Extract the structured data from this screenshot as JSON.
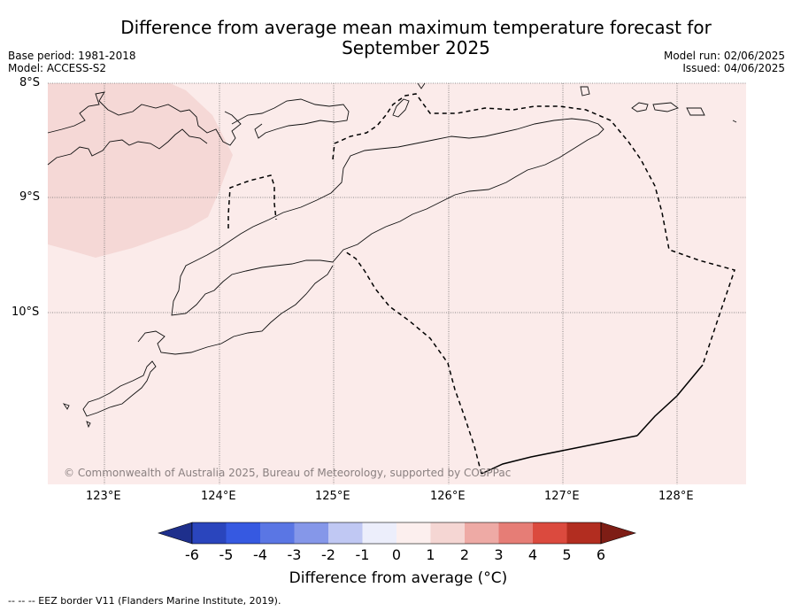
{
  "header": {
    "title_line1": "Difference from average mean maximum temperature forecast for",
    "title_line2": "September 2025",
    "base_period": "Base period: 1981-2018",
    "model": "Model: ACCESS-S2",
    "model_run": "Model run: 02/06/2025",
    "issued": "Issued: 04/06/2025"
  },
  "map": {
    "lat_labels": [
      "8°S",
      "9°S",
      "10°S"
    ],
    "lon_labels": [
      "123°E",
      "124°E",
      "125°E",
      "126°E",
      "127°E",
      "128°E"
    ],
    "credit": "© Commonwealth of Australia 2025, Bureau of Meteorology, supported by COSPPac",
    "fill_colors": {
      "background_anomaly": "#fbebea",
      "warmer_region": "#f5d8d6",
      "grid": "#6b6b6b"
    }
  },
  "colorbar": {
    "title": "Difference from average (°C)",
    "tick_labels": [
      "-6",
      "-5",
      "-4",
      "-3",
      "-2",
      "-1",
      "0",
      "1",
      "2",
      "3",
      "4",
      "5",
      "6"
    ],
    "colors": [
      "#1e2f8c",
      "#2a45bd",
      "#3659e1",
      "#5a76e4",
      "#8597e9",
      "#c0c8f3",
      "#eceefb",
      "#fcefee",
      "#f5d6d3",
      "#eeaaa5",
      "#e67d76",
      "#db4a3e",
      "#b22d20",
      "#7e1d15"
    ]
  },
  "footer": {
    "legend": "--  --  -- EEZ border V11 (Flanders Marine Institute, 2019)."
  }
}
